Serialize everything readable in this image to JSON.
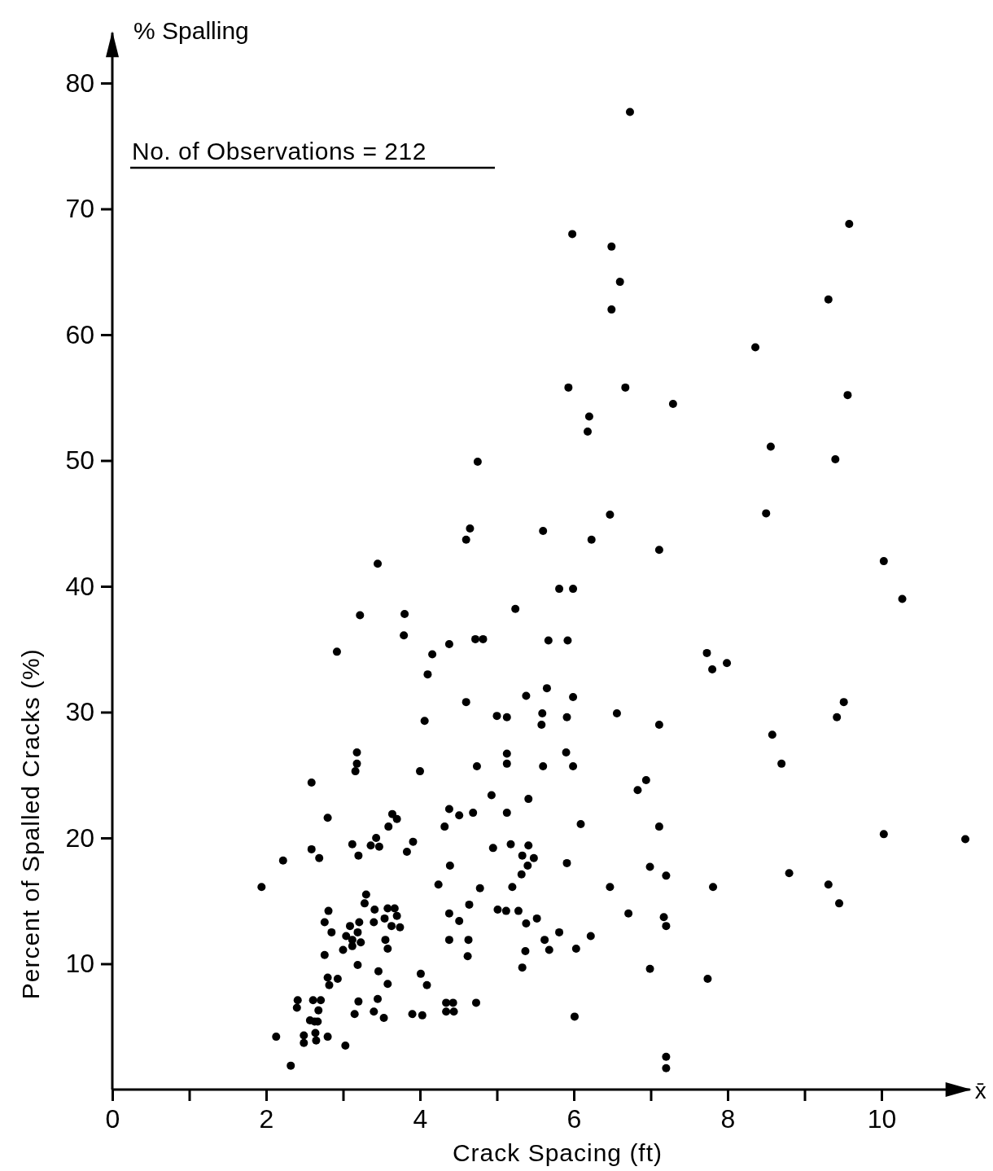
{
  "chart_data": {
    "type": "scatter",
    "xlabel": "Crack Spacing (ft)",
    "ylabel": "Percent of Spalled Cracks  (%)",
    "annotations": [
      "No. of Observations = 212",
      "% Spalling",
      "x̄"
    ],
    "marker": "circle",
    "xlim": [
      0,
      11.15
    ],
    "ylim": [
      0,
      84
    ],
    "xticks": [
      0,
      {
        "value": 1,
        "label": null
      },
      2,
      {
        "value": 3,
        "label": null
      },
      4,
      {
        "value": 5,
        "label": null
      },
      6,
      {
        "value": 7,
        "label": null
      },
      8,
      {
        "value": 9,
        "label": null
      },
      10
    ],
    "yticks": [
      10,
      20,
      30,
      40,
      50,
      60,
      70,
      80
    ],
    "series": [
      {
        "color": "#000000",
        "x": [
          6.73,
          9.58,
          5.98,
          6.49,
          6.6,
          6.49,
          9.31,
          8.36,
          5.93,
          6.67,
          9.56,
          7.29,
          6.2,
          6.18,
          8.56,
          9.4,
          4.75,
          4.65,
          4.6,
          5.6,
          6.47,
          6.23,
          8.5,
          7.11,
          3.45,
          10.03,
          10.27,
          5.81,
          5.99,
          3.22,
          3.8,
          5.24,
          3.79,
          4.38,
          4.72,
          4.82,
          5.67,
          5.92,
          2.92,
          4.16,
          4.1,
          7.73,
          7.8,
          7.99,
          5.65,
          5.38,
          5.99,
          4.6,
          9.51,
          5.0,
          5.13,
          5.59,
          5.58,
          5.91,
          6.56,
          4.06,
          9.42,
          7.11,
          8.58,
          3.18,
          3.18,
          3.16,
          5.13,
          5.13,
          5.9,
          5.6,
          5.99,
          4.74,
          4.0,
          8.7,
          2.59,
          6.94,
          6.83,
          4.93,
          5.41,
          4.38,
          4.51,
          4.69,
          5.13,
          2.8,
          3.64,
          3.7,
          3.59,
          6.09,
          4.32,
          7.11,
          10.03,
          11.09,
          3.43,
          3.91,
          3.12,
          3.36,
          3.47,
          3.83,
          3.2,
          2.59,
          2.69,
          2.22,
          1.94,
          4.24,
          4.39,
          3.3,
          3.28,
          2.81,
          2.76,
          2.85,
          3.09,
          3.21,
          3.19,
          3.04,
          3.12,
          3.12,
          3.23,
          3.41,
          3.4,
          3.54,
          3.58,
          3.67,
          3.7,
          3.63,
          3.74,
          3.55,
          3.58,
          3.0,
          2.76,
          3.19,
          3.46,
          3.58,
          2.8,
          2.93,
          2.82,
          4.01,
          4.09,
          4.38,
          4.38,
          2.41,
          2.4,
          2.61,
          2.71,
          2.68,
          2.57,
          2.63,
          2.67,
          3.2,
          3.45,
          3.15,
          3.4,
          3.53,
          3.9,
          4.03,
          4.34,
          4.34,
          2.13,
          2.49,
          2.49,
          2.64,
          2.65,
          2.8,
          3.03,
          2.32,
          4.95,
          5.18,
          5.41,
          5.33,
          5.48,
          5.4,
          5.32,
          5.91,
          4.78,
          5.2,
          6.47,
          4.64,
          4.51,
          5.01,
          5.12,
          5.28,
          5.38,
          5.52,
          5.81,
          5.62,
          5.68,
          6.03,
          6.22,
          5.37,
          5.33,
          4.63,
          4.62,
          4.43,
          4.44,
          4.73,
          6.01,
          6.71,
          6.99,
          7.2,
          7.17,
          7.2,
          6.99,
          7.81,
          7.74,
          8.8,
          9.31,
          9.45,
          7.2,
          7.2
        ],
        "values": [
          77.7,
          68.8,
          68.0,
          67.0,
          64.2,
          62.0,
          62.8,
          59.0,
          55.8,
          55.8,
          55.2,
          54.5,
          53.5,
          52.3,
          51.1,
          50.1,
          49.9,
          44.6,
          43.7,
          44.4,
          45.7,
          43.7,
          45.8,
          42.9,
          41.8,
          42.0,
          39.0,
          39.8,
          39.8,
          37.7,
          37.8,
          38.2,
          36.1,
          35.4,
          35.8,
          35.8,
          35.7,
          35.7,
          34.8,
          34.6,
          33.0,
          34.7,
          33.4,
          33.9,
          31.9,
          31.3,
          31.2,
          30.8,
          30.8,
          29.7,
          29.6,
          29.9,
          29.0,
          29.6,
          29.9,
          29.3,
          29.6,
          29.0,
          28.2,
          26.8,
          25.9,
          25.3,
          26.7,
          25.9,
          26.8,
          25.7,
          25.7,
          25.7,
          25.3,
          25.9,
          24.4,
          24.6,
          23.8,
          23.4,
          23.1,
          22.3,
          21.8,
          22.0,
          22.0,
          21.6,
          21.9,
          21.5,
          20.9,
          21.1,
          20.9,
          20.9,
          20.3,
          19.9,
          20.0,
          19.7,
          19.5,
          19.4,
          19.3,
          18.9,
          18.6,
          19.1,
          18.4,
          18.2,
          16.1,
          16.3,
          17.8,
          15.5,
          14.8,
          14.2,
          13.3,
          12.5,
          13.0,
          13.3,
          12.5,
          12.2,
          11.9,
          11.4,
          11.7,
          14.3,
          13.3,
          13.6,
          14.4,
          14.4,
          13.8,
          13.0,
          12.9,
          11.9,
          11.2,
          11.1,
          10.7,
          9.9,
          9.4,
          8.4,
          8.9,
          8.8,
          8.3,
          9.2,
          8.3,
          14.0,
          11.9,
          7.1,
          6.5,
          7.1,
          7.1,
          6.3,
          5.5,
          5.4,
          5.4,
          7.0,
          7.2,
          6.0,
          6.2,
          5.7,
          6.0,
          5.9,
          6.9,
          6.2,
          4.2,
          4.3,
          3.7,
          4.5,
          3.9,
          4.2,
          3.5,
          1.9,
          19.2,
          19.5,
          19.4,
          18.6,
          18.4,
          17.8,
          17.1,
          18.0,
          16.0,
          16.1,
          16.1,
          14.7,
          13.4,
          14.3,
          14.2,
          14.2,
          13.2,
          13.6,
          12.5,
          11.9,
          11.1,
          11.2,
          12.2,
          11.0,
          9.7,
          11.9,
          10.6,
          6.9,
          6.2,
          6.9,
          5.8,
          14.0,
          17.7,
          17.0,
          13.7,
          13.0,
          9.6,
          16.1,
          8.8,
          17.2,
          16.3,
          14.8,
          2.6,
          1.7
        ]
      }
    ]
  }
}
